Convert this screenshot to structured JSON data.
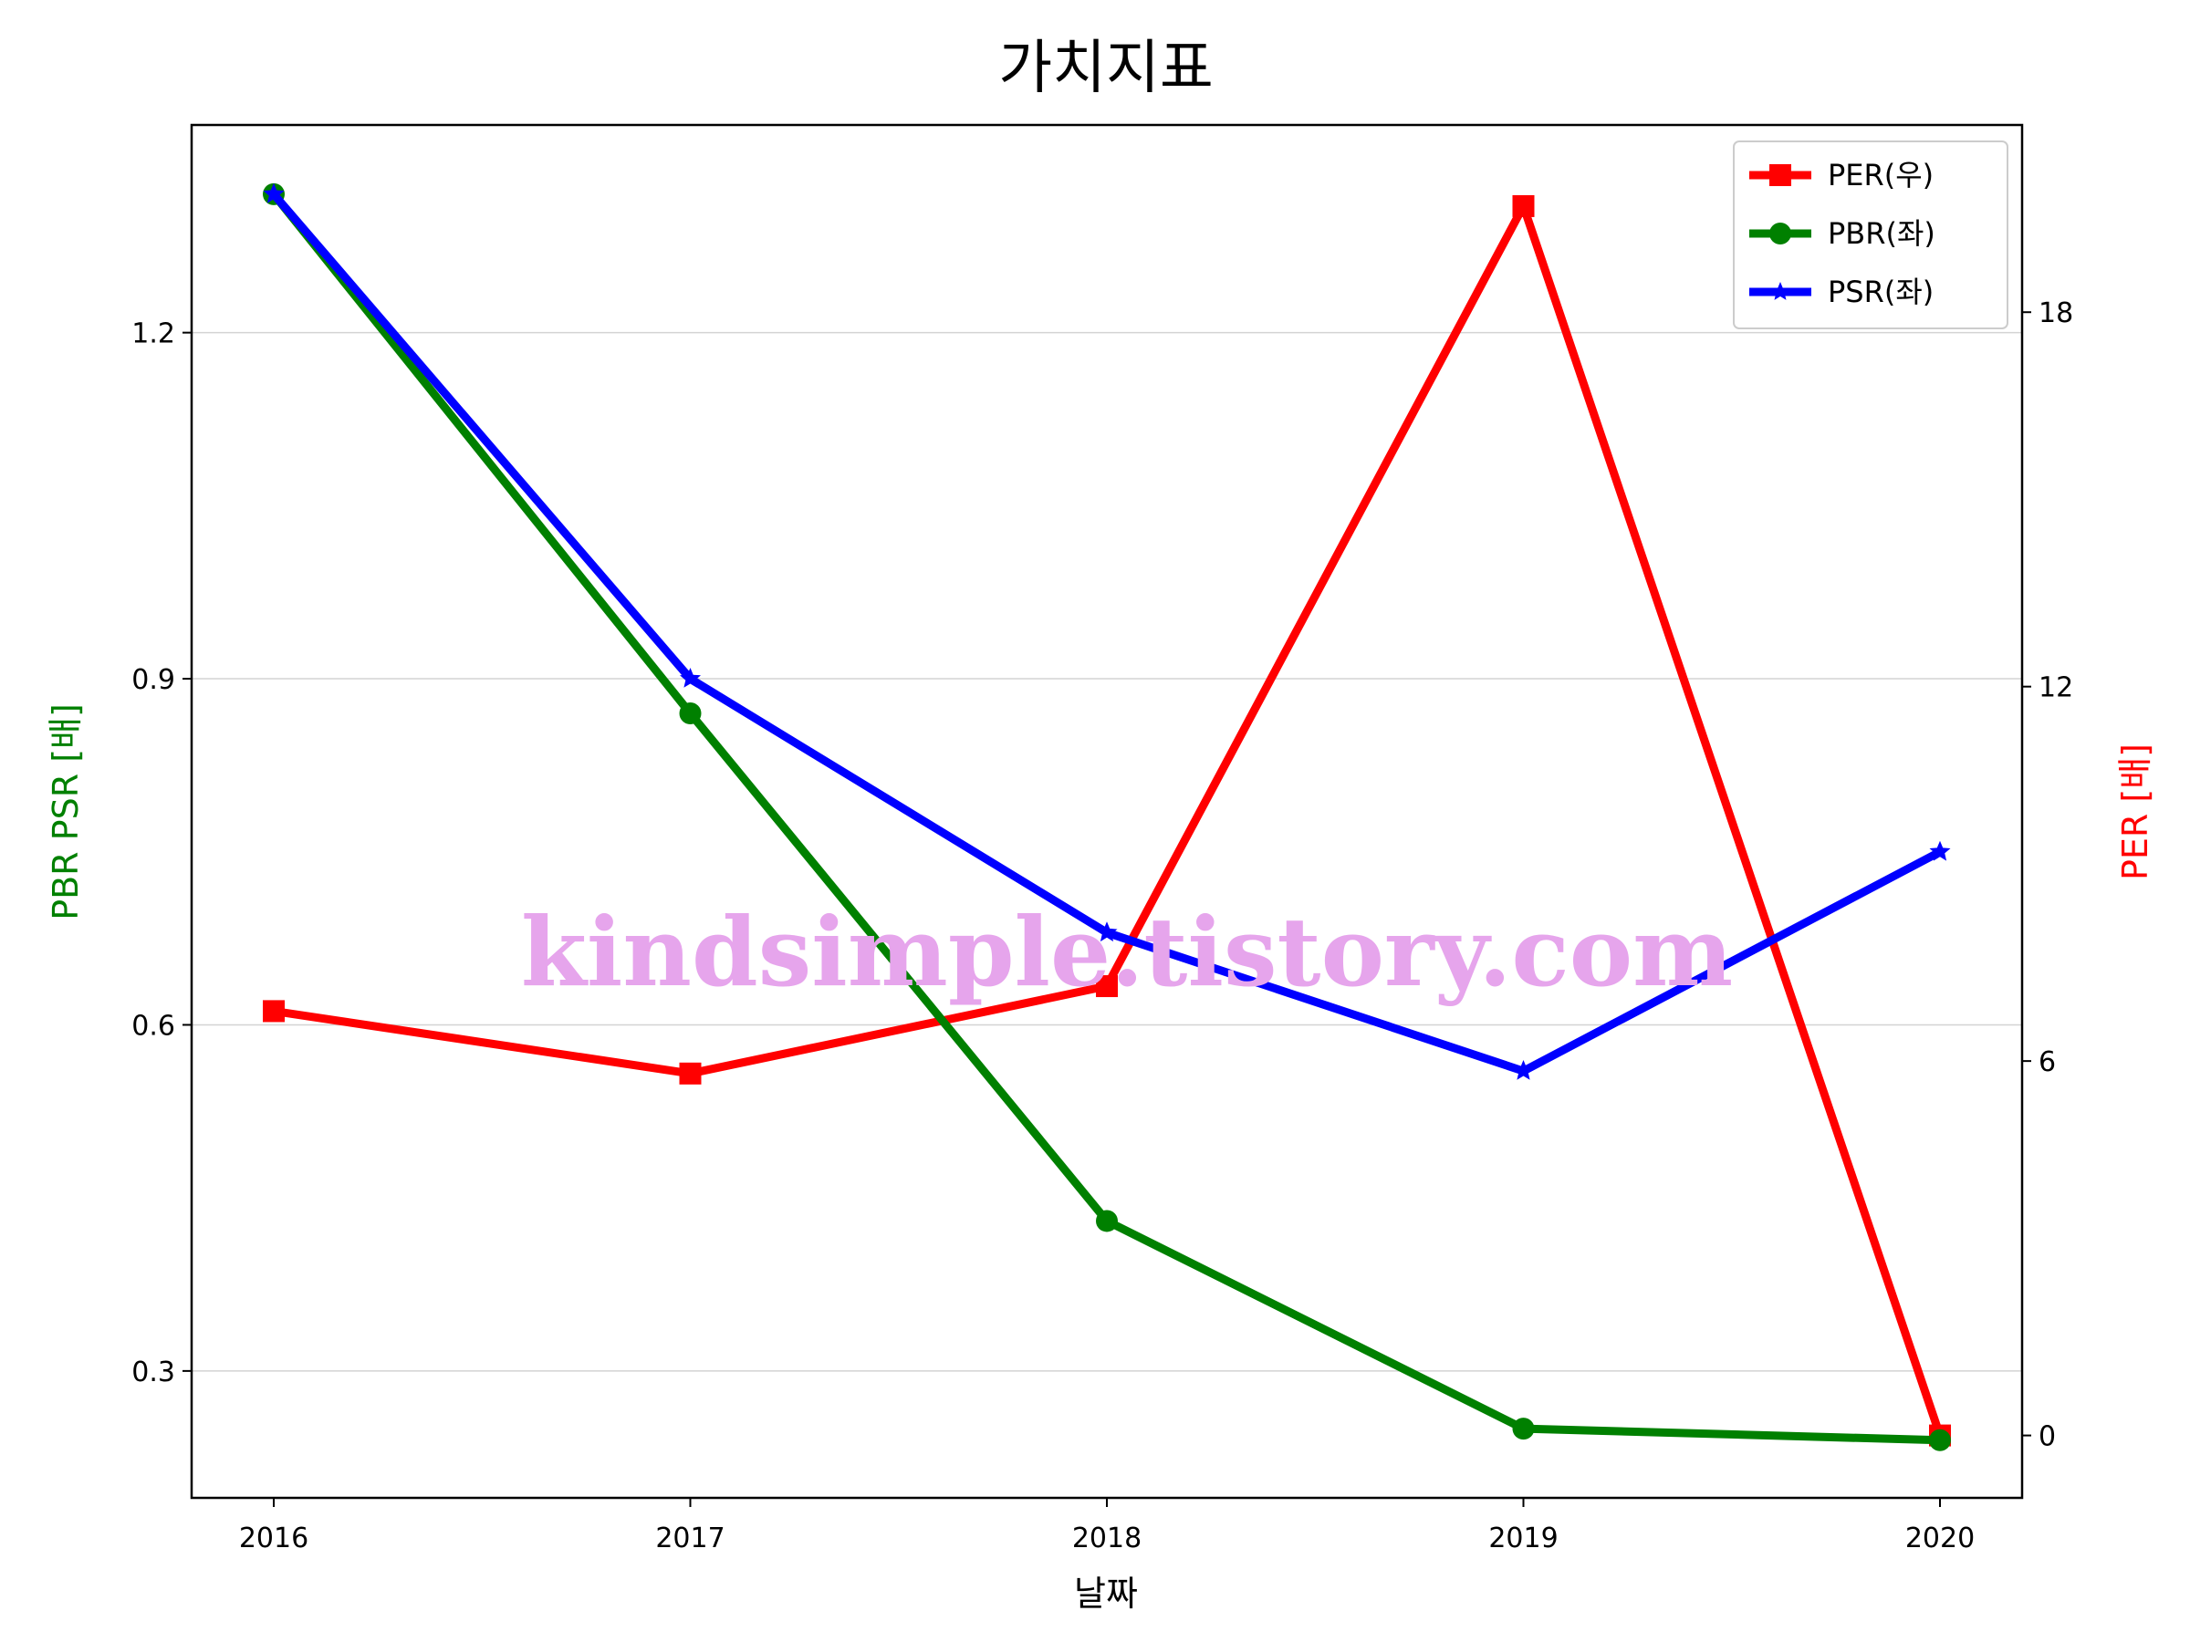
{
  "chart_data": {
    "type": "line",
    "title": "가치지표",
    "xlabel": "날짜",
    "ylabel_left": "PBR PSR [배]",
    "ylabel_right": "PER [배]",
    "x": [
      "2016",
      "2017",
      "2018",
      "2019",
      "2020"
    ],
    "y_left_ticks": [
      "0.3",
      "0.6",
      "0.9",
      "1.2"
    ],
    "y_right_ticks": [
      "0",
      "6",
      "12",
      "18"
    ],
    "ylim_left": [
      0.19,
      1.38
    ],
    "ylim_right": [
      -1.0,
      21.0
    ],
    "grid": "horizontal, left axis",
    "legend_position": "top-right",
    "series": [
      {
        "name": "PER(우)",
        "axis": "right",
        "color": "#ff0000",
        "marker": "square",
        "values": [
          6.8,
          5.8,
          7.2,
          19.7,
          0.0
        ]
      },
      {
        "name": "PBR(좌)",
        "axis": "left",
        "color": "#008000",
        "marker": "circle",
        "values": [
          1.32,
          0.87,
          0.43,
          0.25,
          0.24
        ]
      },
      {
        "name": "PSR(좌)",
        "axis": "left",
        "color": "#0000ff",
        "marker": "star",
        "values": [
          1.32,
          0.9,
          0.68,
          0.56,
          0.75
        ]
      }
    ],
    "watermark": "kindsimple.tistory.com"
  }
}
